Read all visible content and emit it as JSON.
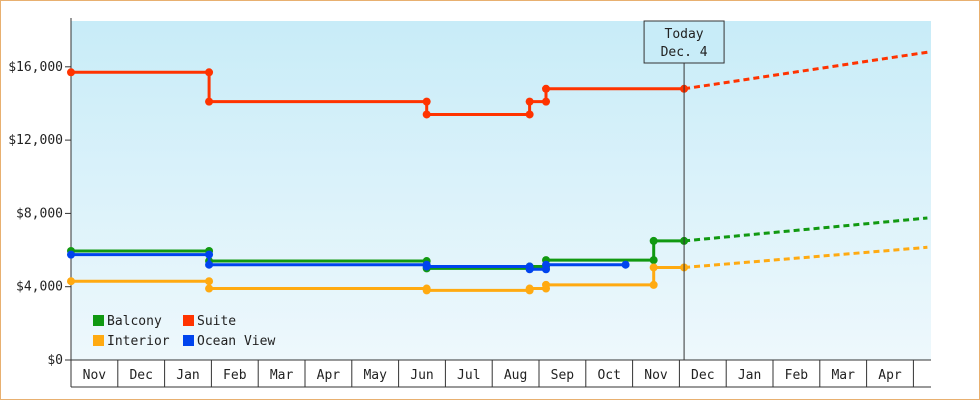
{
  "chart_data": {
    "type": "line",
    "ylim": [
      0,
      18500
    ],
    "y_ticks": [
      {
        "value": 0,
        "label": "$0"
      },
      {
        "value": 4000,
        "label": "$4,000"
      },
      {
        "value": 8000,
        "label": "$8,000"
      },
      {
        "value": 12000,
        "label": "$12,000"
      },
      {
        "value": 16000,
        "label": "$16,000"
      }
    ],
    "x_months": [
      "Nov",
      "Dec",
      "Jan",
      "Feb",
      "Mar",
      "Apr",
      "May",
      "Jun",
      "Jul",
      "Aug",
      "Sep",
      "Oct",
      "Nov",
      "Dec",
      "Jan",
      "Feb",
      "Mar",
      "Apr"
    ],
    "today": {
      "line1": "Today",
      "line2": "Dec. 4",
      "x": 13.1
    },
    "grid": false,
    "background": {
      "top": "#c8ecf8",
      "bottom": "#eef8fc"
    },
    "series": [
      {
        "name": "Suite",
        "color": "#ff3300",
        "points": [
          [
            0,
            15700
          ],
          [
            2.95,
            15700
          ],
          [
            2.95,
            14100
          ],
          [
            7.6,
            14100
          ],
          [
            7.6,
            13400
          ],
          [
            9.8,
            13400
          ],
          [
            9.8,
            14100
          ],
          [
            10.15,
            14100
          ],
          [
            10.15,
            14800
          ],
          [
            13.1,
            14800
          ]
        ],
        "projection": [
          [
            13.1,
            14800
          ],
          [
            18.3,
            16800
          ]
        ]
      },
      {
        "name": "Balcony",
        "color": "#119911",
        "points": [
          [
            0,
            5950
          ],
          [
            2.95,
            5950
          ],
          [
            2.95,
            5400
          ],
          [
            7.6,
            5400
          ],
          [
            7.6,
            5000
          ],
          [
            9.8,
            5000
          ],
          [
            9.8,
            5100
          ],
          [
            10.15,
            5100
          ],
          [
            10.15,
            5450
          ],
          [
            12.45,
            5450
          ],
          [
            12.45,
            6500
          ],
          [
            13.1,
            6500
          ]
        ],
        "projection": [
          [
            13.1,
            6500
          ],
          [
            18.3,
            7750
          ]
        ]
      },
      {
        "name": "Ocean View",
        "color": "#0044ee",
        "points": [
          [
            0,
            5750
          ],
          [
            2.95,
            5750
          ],
          [
            2.95,
            5200
          ],
          [
            7.6,
            5200
          ],
          [
            7.6,
            5100
          ],
          [
            9.8,
            5100
          ],
          [
            9.8,
            4950
          ],
          [
            10.15,
            4950
          ],
          [
            10.15,
            5200
          ],
          [
            11.85,
            5200
          ]
        ],
        "projection": []
      },
      {
        "name": "Interior",
        "color": "#ffaa11",
        "points": [
          [
            0,
            4300
          ],
          [
            2.95,
            4300
          ],
          [
            2.95,
            3900
          ],
          [
            7.6,
            3900
          ],
          [
            7.6,
            3800
          ],
          [
            9.8,
            3800
          ],
          [
            9.8,
            3900
          ],
          [
            10.15,
            3900
          ],
          [
            10.15,
            4100
          ],
          [
            12.45,
            4100
          ],
          [
            12.45,
            5050
          ],
          [
            13.1,
            5050
          ]
        ],
        "projection": [
          [
            13.1,
            5050
          ],
          [
            18.3,
            6150
          ]
        ]
      }
    ],
    "legend": [
      {
        "name": "Balcony",
        "color": "#119911"
      },
      {
        "name": "Suite",
        "color": "#ff3300"
      },
      {
        "name": "Interior",
        "color": "#ffaa11"
      },
      {
        "name": "Ocean View",
        "color": "#0044ee"
      }
    ],
    "legend_position": "bottom-left"
  }
}
